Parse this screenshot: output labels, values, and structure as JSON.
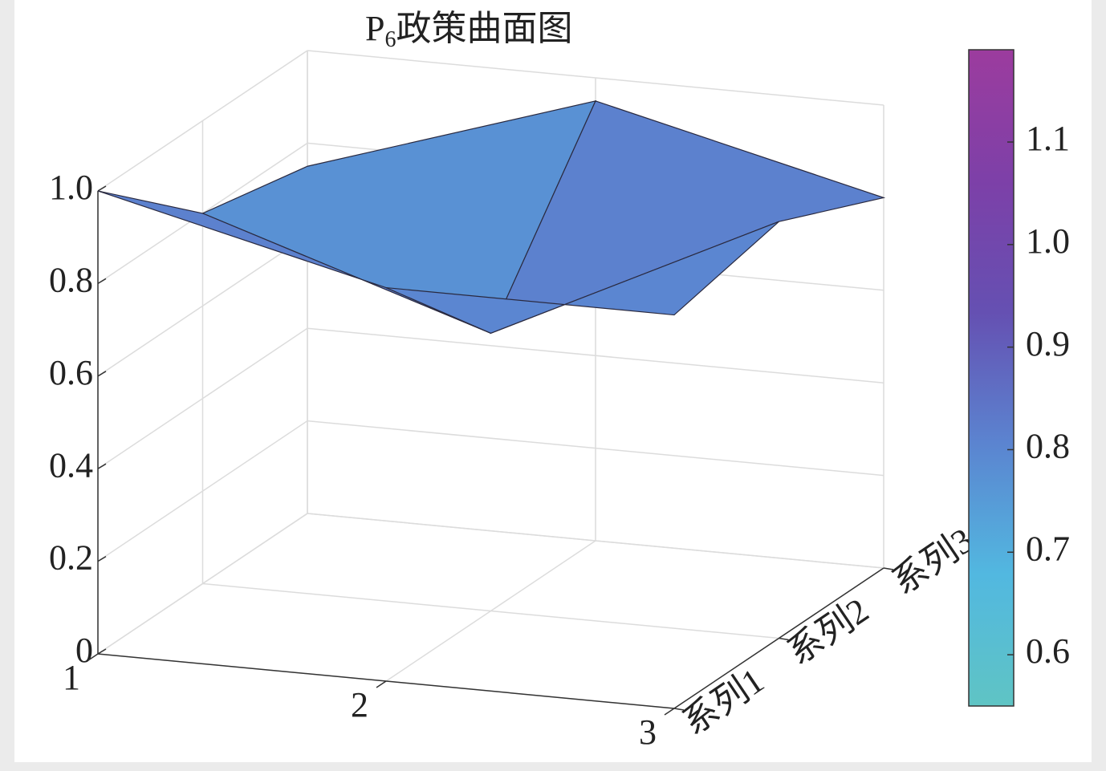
{
  "chart_data": {
    "type": "surface",
    "title_parts": [
      "P",
      "6",
      "政策曲面图"
    ],
    "x": [
      1,
      2,
      3
    ],
    "categories": [
      "系列1",
      "系列2",
      "系列3"
    ],
    "z": [
      [
        1.0,
        0.85,
        0.85
      ],
      [
        0.8,
        0.6,
        0.9
      ],
      [
        0.75,
        0.95,
        0.8
      ]
    ],
    "xlim": [
      1,
      3
    ],
    "xticks": [
      1,
      2,
      3
    ],
    "zlim": [
      0,
      1
    ],
    "zticks": [
      0,
      0.2,
      0.4,
      0.6,
      0.8,
      {
        "value": 1,
        "label": "1.0"
      }
    ],
    "grid": true,
    "colormap": [
      "#5fc4c4",
      "#52b8e0",
      "#5b84d0",
      "#6550b2",
      "#7d40a8",
      "#9c3c9e"
    ],
    "clim": [
      0.55,
      1.19
    ],
    "colorbar_ticks": [
      0.6,
      0.7,
      0.8,
      0.9,
      {
        "value": 1,
        "label": "1.0"
      },
      1.1
    ]
  }
}
